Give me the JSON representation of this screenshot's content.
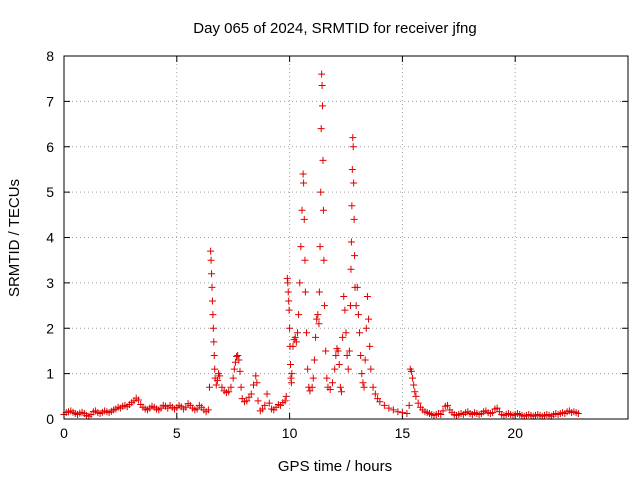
{
  "chart_data": {
    "type": "scatter",
    "title": "Day 065 of 2024, SRMTID for receiver jfng",
    "xlabel": "GPS time / hours",
    "ylabel": "SRMTID / TECUs",
    "xlim": [
      0,
      25
    ],
    "ylim": [
      0,
      8
    ],
    "xticks": [
      0,
      5,
      10,
      15,
      20
    ],
    "yticks": [
      0,
      1,
      2,
      3,
      4,
      5,
      6,
      7,
      8
    ],
    "grid": true,
    "marker": "+",
    "color": "#e00000",
    "series": [
      {
        "name": "SRMTID",
        "points": [
          [
            0.0,
            0.1
          ],
          [
            0.1,
            0.14
          ],
          [
            0.2,
            0.16
          ],
          [
            0.3,
            0.18
          ],
          [
            0.4,
            0.15
          ],
          [
            0.5,
            0.12
          ],
          [
            0.6,
            0.1
          ],
          [
            0.7,
            0.13
          ],
          [
            0.8,
            0.15
          ],
          [
            0.9,
            0.12
          ],
          [
            1.0,
            0.08
          ],
          [
            1.1,
            0.06
          ],
          [
            1.2,
            0.1
          ],
          [
            1.3,
            0.16
          ],
          [
            1.4,
            0.18
          ],
          [
            1.5,
            0.14
          ],
          [
            1.6,
            0.12
          ],
          [
            1.7,
            0.15
          ],
          [
            1.8,
            0.18
          ],
          [
            1.9,
            0.16
          ],
          [
            2.0,
            0.14
          ],
          [
            2.1,
            0.17
          ],
          [
            2.2,
            0.2
          ],
          [
            2.3,
            0.22
          ],
          [
            2.4,
            0.26
          ],
          [
            2.5,
            0.24
          ],
          [
            2.6,
            0.28
          ],
          [
            2.7,
            0.3
          ],
          [
            2.8,
            0.27
          ],
          [
            2.9,
            0.32
          ],
          [
            3.0,
            0.36
          ],
          [
            3.1,
            0.4
          ],
          [
            3.2,
            0.46
          ],
          [
            3.3,
            0.42
          ],
          [
            3.4,
            0.32
          ],
          [
            3.5,
            0.26
          ],
          [
            3.6,
            0.22
          ],
          [
            3.7,
            0.2
          ],
          [
            3.8,
            0.24
          ],
          [
            3.9,
            0.28
          ],
          [
            4.0,
            0.26
          ],
          [
            4.1,
            0.22
          ],
          [
            4.2,
            0.2
          ],
          [
            4.3,
            0.24
          ],
          [
            4.4,
            0.3
          ],
          [
            4.5,
            0.28
          ],
          [
            4.6,
            0.24
          ],
          [
            4.7,
            0.3
          ],
          [
            4.8,
            0.26
          ],
          [
            4.9,
            0.22
          ],
          [
            5.0,
            0.25
          ],
          [
            5.1,
            0.3
          ],
          [
            5.2,
            0.27
          ],
          [
            5.3,
            0.22
          ],
          [
            5.4,
            0.26
          ],
          [
            5.5,
            0.34
          ],
          [
            5.6,
            0.3
          ],
          [
            5.7,
            0.24
          ],
          [
            5.8,
            0.2
          ],
          [
            5.9,
            0.22
          ],
          [
            6.0,
            0.3
          ],
          [
            6.1,
            0.26
          ],
          [
            6.2,
            0.2
          ],
          [
            6.3,
            0.16
          ],
          [
            6.4,
            0.2
          ],
          [
            6.45,
            0.7
          ],
          [
            6.5,
            3.7
          ],
          [
            6.52,
            3.5
          ],
          [
            6.54,
            3.2
          ],
          [
            6.56,
            2.9
          ],
          [
            6.58,
            2.6
          ],
          [
            6.6,
            2.3
          ],
          [
            6.62,
            2.0
          ],
          [
            6.64,
            1.7
          ],
          [
            6.66,
            1.4
          ],
          [
            6.68,
            1.1
          ],
          [
            6.7,
            0.9
          ],
          [
            6.75,
            0.75
          ],
          [
            6.8,
            0.85
          ],
          [
            6.85,
            1.0
          ],
          [
            6.9,
            0.95
          ],
          [
            7.0,
            0.7
          ],
          [
            7.1,
            0.62
          ],
          [
            7.2,
            0.58
          ],
          [
            7.3,
            0.6
          ],
          [
            7.4,
            0.7
          ],
          [
            7.5,
            0.9
          ],
          [
            7.55,
            1.1
          ],
          [
            7.6,
            1.25
          ],
          [
            7.65,
            1.38
          ],
          [
            7.7,
            1.4
          ],
          [
            7.75,
            1.3
          ],
          [
            7.8,
            1.05
          ],
          [
            7.85,
            0.7
          ],
          [
            7.9,
            0.45
          ],
          [
            8.0,
            0.38
          ],
          [
            8.1,
            0.4
          ],
          [
            8.2,
            0.48
          ],
          [
            8.3,
            0.55
          ],
          [
            8.4,
            0.75
          ],
          [
            8.5,
            0.95
          ],
          [
            8.55,
            0.8
          ],
          [
            8.6,
            0.4
          ],
          [
            8.7,
            0.18
          ],
          [
            8.8,
            0.22
          ],
          [
            8.9,
            0.3
          ],
          [
            9.0,
            0.55
          ],
          [
            9.1,
            0.35
          ],
          [
            9.2,
            0.22
          ],
          [
            9.3,
            0.2
          ],
          [
            9.4,
            0.26
          ],
          [
            9.5,
            0.32
          ],
          [
            9.6,
            0.3
          ],
          [
            9.7,
            0.36
          ],
          [
            9.8,
            0.4
          ],
          [
            9.85,
            0.5
          ],
          [
            9.9,
            3.1
          ],
          [
            9.92,
            3.0
          ],
          [
            9.94,
            2.8
          ],
          [
            9.96,
            2.6
          ],
          [
            9.98,
            2.4
          ],
          [
            10.0,
            2.0
          ],
          [
            10.02,
            1.6
          ],
          [
            10.04,
            1.2
          ],
          [
            10.06,
            0.9
          ],
          [
            10.08,
            0.8
          ],
          [
            10.1,
            1.0
          ],
          [
            10.15,
            1.6
          ],
          [
            10.2,
            1.75
          ],
          [
            10.25,
            1.8
          ],
          [
            10.3,
            1.7
          ],
          [
            10.35,
            1.9
          ],
          [
            10.4,
            2.3
          ],
          [
            10.45,
            3.0
          ],
          [
            10.5,
            3.8
          ],
          [
            10.55,
            4.6
          ],
          [
            10.6,
            5.4
          ],
          [
            10.62,
            5.2
          ],
          [
            10.65,
            4.4
          ],
          [
            10.68,
            3.5
          ],
          [
            10.7,
            2.8
          ],
          [
            10.75,
            1.9
          ],
          [
            10.8,
            1.1
          ],
          [
            10.85,
            0.7
          ],
          [
            10.9,
            0.62
          ],
          [
            11.0,
            0.7
          ],
          [
            11.05,
            0.9
          ],
          [
            11.1,
            1.3
          ],
          [
            11.15,
            1.8
          ],
          [
            11.2,
            2.2
          ],
          [
            11.25,
            2.3
          ],
          [
            11.3,
            2.1
          ],
          [
            11.32,
            2.8
          ],
          [
            11.35,
            3.8
          ],
          [
            11.38,
            5.0
          ],
          [
            11.4,
            6.4
          ],
          [
            11.42,
            7.6
          ],
          [
            11.44,
            7.35
          ],
          [
            11.46,
            6.9
          ],
          [
            11.48,
            5.7
          ],
          [
            11.5,
            4.6
          ],
          [
            11.52,
            3.5
          ],
          [
            11.55,
            2.5
          ],
          [
            11.6,
            1.5
          ],
          [
            11.65,
            0.9
          ],
          [
            11.7,
            0.7
          ],
          [
            11.8,
            0.65
          ],
          [
            11.9,
            0.8
          ],
          [
            12.0,
            1.1
          ],
          [
            12.05,
            1.4
          ],
          [
            12.1,
            1.55
          ],
          [
            12.15,
            1.5
          ],
          [
            12.2,
            1.2
          ],
          [
            12.25,
            0.7
          ],
          [
            12.3,
            0.6
          ],
          [
            12.35,
            1.8
          ],
          [
            12.4,
            2.7
          ],
          [
            12.45,
            2.4
          ],
          [
            12.5,
            1.9
          ],
          [
            12.55,
            1.4
          ],
          [
            12.6,
            1.1
          ],
          [
            12.65,
            1.5
          ],
          [
            12.7,
            2.5
          ],
          [
            12.72,
            3.3
          ],
          [
            12.74,
            3.9
          ],
          [
            12.76,
            4.7
          ],
          [
            12.78,
            5.5
          ],
          [
            12.8,
            6.2
          ],
          [
            12.82,
            6.0
          ],
          [
            12.84,
            5.2
          ],
          [
            12.86,
            4.4
          ],
          [
            12.88,
            3.6
          ],
          [
            12.9,
            2.9
          ],
          [
            12.95,
            2.5
          ],
          [
            13.0,
            2.9
          ],
          [
            13.05,
            2.3
          ],
          [
            13.1,
            1.9
          ],
          [
            13.15,
            1.4
          ],
          [
            13.2,
            1.0
          ],
          [
            13.25,
            0.8
          ],
          [
            13.3,
            0.7
          ],
          [
            13.35,
            1.3
          ],
          [
            13.4,
            2.0
          ],
          [
            13.45,
            2.7
          ],
          [
            13.5,
            2.2
          ],
          [
            13.55,
            1.6
          ],
          [
            13.6,
            1.1
          ],
          [
            13.7,
            0.7
          ],
          [
            13.8,
            0.55
          ],
          [
            13.9,
            0.45
          ],
          [
            14.0,
            0.38
          ],
          [
            14.2,
            0.3
          ],
          [
            14.4,
            0.24
          ],
          [
            14.6,
            0.2
          ],
          [
            14.8,
            0.16
          ],
          [
            15.0,
            0.14
          ],
          [
            15.2,
            0.12
          ],
          [
            15.3,
            0.3
          ],
          [
            15.35,
            1.1
          ],
          [
            15.4,
            1.05
          ],
          [
            15.45,
            0.9
          ],
          [
            15.5,
            0.75
          ],
          [
            15.55,
            0.6
          ],
          [
            15.6,
            0.5
          ],
          [
            15.7,
            0.35
          ],
          [
            15.8,
            0.26
          ],
          [
            15.9,
            0.2
          ],
          [
            16.0,
            0.16
          ],
          [
            16.1,
            0.14
          ],
          [
            16.2,
            0.12
          ],
          [
            16.3,
            0.1
          ],
          [
            16.4,
            0.08
          ],
          [
            16.5,
            0.1
          ],
          [
            16.6,
            0.12
          ],
          [
            16.7,
            0.1
          ],
          [
            16.8,
            0.18
          ],
          [
            16.9,
            0.28
          ],
          [
            17.0,
            0.3
          ],
          [
            17.1,
            0.2
          ],
          [
            17.2,
            0.14
          ],
          [
            17.3,
            0.1
          ],
          [
            17.4,
            0.08
          ],
          [
            17.5,
            0.1
          ],
          [
            17.6,
            0.12
          ],
          [
            17.7,
            0.1
          ],
          [
            17.8,
            0.14
          ],
          [
            17.9,
            0.16
          ],
          [
            18.0,
            0.12
          ],
          [
            18.1,
            0.1
          ],
          [
            18.2,
            0.14
          ],
          [
            18.3,
            0.12
          ],
          [
            18.4,
            0.1
          ],
          [
            18.5,
            0.12
          ],
          [
            18.6,
            0.16
          ],
          [
            18.7,
            0.18
          ],
          [
            18.8,
            0.14
          ],
          [
            18.9,
            0.12
          ],
          [
            19.0,
            0.14
          ],
          [
            19.1,
            0.22
          ],
          [
            19.2,
            0.24
          ],
          [
            19.3,
            0.16
          ],
          [
            19.4,
            0.1
          ],
          [
            19.5,
            0.08
          ],
          [
            19.6,
            0.1
          ],
          [
            19.7,
            0.12
          ],
          [
            19.8,
            0.1
          ],
          [
            19.9,
            0.08
          ],
          [
            20.0,
            0.1
          ],
          [
            20.1,
            0.12
          ],
          [
            20.2,
            0.1
          ],
          [
            20.3,
            0.08
          ],
          [
            20.4,
            0.06
          ],
          [
            20.5,
            0.08
          ],
          [
            20.6,
            0.1
          ],
          [
            20.7,
            0.08
          ],
          [
            20.8,
            0.06
          ],
          [
            20.9,
            0.08
          ],
          [
            21.0,
            0.1
          ],
          [
            21.1,
            0.08
          ],
          [
            21.2,
            0.06
          ],
          [
            21.3,
            0.08
          ],
          [
            21.4,
            0.1
          ],
          [
            21.5,
            0.08
          ],
          [
            21.6,
            0.06
          ],
          [
            21.7,
            0.1
          ],
          [
            21.8,
            0.12
          ],
          [
            21.9,
            0.1
          ],
          [
            22.0,
            0.12
          ],
          [
            22.1,
            0.14
          ],
          [
            22.2,
            0.12
          ],
          [
            22.3,
            0.16
          ],
          [
            22.4,
            0.18
          ],
          [
            22.5,
            0.14
          ],
          [
            22.6,
            0.16
          ],
          [
            22.7,
            0.14
          ],
          [
            22.8,
            0.12
          ]
        ]
      }
    ]
  }
}
